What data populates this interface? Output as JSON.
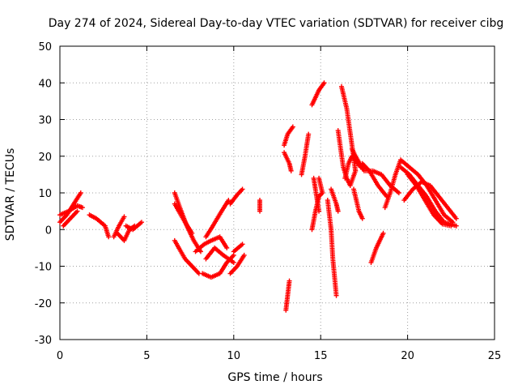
{
  "chart_data": {
    "type": "scatter",
    "title": "Day 274 of 2024, Sidereal Day-to-day VTEC variation (SDTVAR) for receiver cibg",
    "xlabel": "GPS time / hours",
    "ylabel": "SDTVAR / TECUs",
    "xlim": [
      0,
      25
    ],
    "ylim": [
      -30,
      50
    ],
    "xticks": [
      "0",
      "5",
      "10",
      "15",
      "20",
      "25"
    ],
    "yticks": [
      "-30",
      "-20",
      "-10",
      "0",
      "10",
      "20",
      "30",
      "40",
      "50"
    ],
    "grid": true,
    "marker": "+",
    "color": "#ff0000",
    "tracks": [
      [
        [
          0.0,
          2
        ],
        [
          0.4,
          4
        ],
        [
          0.8,
          7
        ],
        [
          1.2,
          10
        ]
      ],
      [
        [
          0.0,
          4
        ],
        [
          0.5,
          5
        ],
        [
          1.0,
          6.5
        ],
        [
          1.3,
          6
        ]
      ],
      [
        [
          0.2,
          1
        ],
        [
          0.6,
          3
        ],
        [
          1.0,
          5
        ]
      ],
      [
        [
          1.7,
          4
        ],
        [
          2.1,
          3
        ],
        [
          2.6,
          1
        ],
        [
          2.8,
          -2
        ]
      ],
      [
        [
          3.1,
          -2
        ],
        [
          3.4,
          1
        ],
        [
          3.7,
          3.5
        ]
      ],
      [
        [
          3.3,
          -1
        ],
        [
          3.7,
          -3
        ],
        [
          4.0,
          0
        ],
        [
          4.3,
          1
        ]
      ],
      [
        [
          3.8,
          1
        ],
        [
          4.2,
          0
        ],
        [
          4.7,
          2
        ]
      ],
      [
        [
          6.6,
          10
        ],
        [
          6.9,
          6
        ],
        [
          7.3,
          1
        ],
        [
          7.7,
          -3
        ],
        [
          8.1,
          -6
        ]
      ],
      [
        [
          6.6,
          7
        ],
        [
          7.2,
          2
        ],
        [
          7.6,
          -1
        ]
      ],
      [
        [
          6.6,
          -3
        ],
        [
          7.2,
          -8
        ],
        [
          7.6,
          -10
        ],
        [
          8.0,
          -12
        ]
      ],
      [
        [
          7.8,
          -6
        ],
        [
          8.3,
          -4
        ],
        [
          8.7,
          -3
        ],
        [
          9.2,
          -2
        ],
        [
          9.6,
          -5
        ]
      ],
      [
        [
          8.4,
          -2
        ],
        [
          8.8,
          1
        ],
        [
          9.3,
          5
        ],
        [
          9.7,
          8
        ]
      ],
      [
        [
          8.2,
          -12
        ],
        [
          8.7,
          -13
        ],
        [
          9.2,
          -12
        ],
        [
          9.6,
          -9
        ],
        [
          10.0,
          -7
        ]
      ],
      [
        [
          8.4,
          -8
        ],
        [
          8.9,
          -5
        ],
        [
          9.4,
          -7
        ],
        [
          10.0,
          -9
        ]
      ],
      [
        [
          9.8,
          7
        ],
        [
          10.2,
          9.5
        ],
        [
          10.5,
          11
        ]
      ],
      [
        [
          9.8,
          -12
        ],
        [
          10.2,
          -10
        ],
        [
          10.6,
          -7
        ]
      ],
      [
        [
          10.0,
          -6
        ],
        [
          10.5,
          -4
        ]
      ],
      [
        [
          11.5,
          5
        ],
        [
          11.5,
          8
        ]
      ],
      [
        [
          12.9,
          23
        ],
        [
          13.1,
          26
        ],
        [
          13.4,
          28
        ]
      ],
      [
        [
          12.9,
          21
        ],
        [
          13.2,
          18
        ],
        [
          13.3,
          16
        ]
      ],
      [
        [
          13.0,
          -22
        ],
        [
          13.1,
          -18
        ],
        [
          13.2,
          -14
        ]
      ],
      [
        [
          13.9,
          15
        ],
        [
          14.1,
          20
        ],
        [
          14.3,
          26
        ]
      ],
      [
        [
          14.5,
          34
        ],
        [
          14.9,
          38
        ],
        [
          15.2,
          40
        ]
      ],
      [
        [
          14.5,
          0
        ],
        [
          14.7,
          5
        ],
        [
          14.9,
          9
        ],
        [
          15.1,
          10
        ],
        [
          14.9,
          14
        ]
      ],
      [
        [
          14.6,
          14
        ],
        [
          14.7,
          11
        ],
        [
          14.9,
          5
        ]
      ],
      [
        [
          15.4,
          8
        ],
        [
          15.6,
          0
        ],
        [
          15.7,
          -8
        ],
        [
          15.9,
          -18
        ]
      ],
      [
        [
          15.6,
          11
        ],
        [
          15.9,
          7
        ],
        [
          16.0,
          5
        ]
      ],
      [
        [
          16.0,
          27
        ],
        [
          16.3,
          17
        ],
        [
          16.5,
          14
        ],
        [
          16.7,
          12
        ],
        [
          17.0,
          16
        ]
      ],
      [
        [
          16.2,
          39
        ],
        [
          16.5,
          33
        ],
        [
          16.8,
          23
        ],
        [
          17.0,
          16
        ]
      ],
      [
        [
          16.4,
          14
        ],
        [
          16.6,
          18
        ],
        [
          16.8,
          20
        ],
        [
          17.3,
          17
        ]
      ],
      [
        [
          16.8,
          22
        ],
        [
          17.0,
          20
        ],
        [
          17.5,
          16
        ],
        [
          18.0,
          16
        ],
        [
          18.5,
          15
        ],
        [
          19.0,
          12
        ],
        [
          19.5,
          10
        ]
      ],
      [
        [
          16.9,
          11
        ],
        [
          17.2,
          5
        ],
        [
          17.4,
          3
        ]
      ],
      [
        [
          17.4,
          18
        ],
        [
          17.8,
          16
        ],
        [
          18.3,
          12
        ],
        [
          18.8,
          9
        ]
      ],
      [
        [
          17.9,
          -9
        ],
        [
          18.2,
          -5
        ],
        [
          18.6,
          -1
        ]
      ],
      [
        [
          18.7,
          6
        ],
        [
          19.0,
          10
        ],
        [
          19.3,
          15
        ],
        [
          19.6,
          19
        ],
        [
          20.1,
          17
        ],
        [
          20.6,
          15
        ],
        [
          21.1,
          12
        ],
        [
          21.6,
          8
        ],
        [
          22.1,
          4
        ],
        [
          22.6,
          2
        ]
      ],
      [
        [
          19.6,
          17
        ],
        [
          20.1,
          15
        ],
        [
          20.6,
          12
        ],
        [
          21.1,
          9
        ],
        [
          21.6,
          5
        ],
        [
          22.1,
          2
        ],
        [
          22.8,
          1
        ]
      ],
      [
        [
          19.8,
          8
        ],
        [
          20.3,
          11
        ],
        [
          20.8,
          13
        ],
        [
          21.3,
          12
        ],
        [
          21.8,
          9
        ],
        [
          22.3,
          6
        ],
        [
          22.8,
          3
        ]
      ],
      [
        [
          20.0,
          15
        ],
        [
          20.5,
          12
        ],
        [
          21.0,
          8
        ],
        [
          21.5,
          4
        ],
        [
          22.0,
          1.5
        ],
        [
          22.5,
          1
        ]
      ]
    ]
  }
}
